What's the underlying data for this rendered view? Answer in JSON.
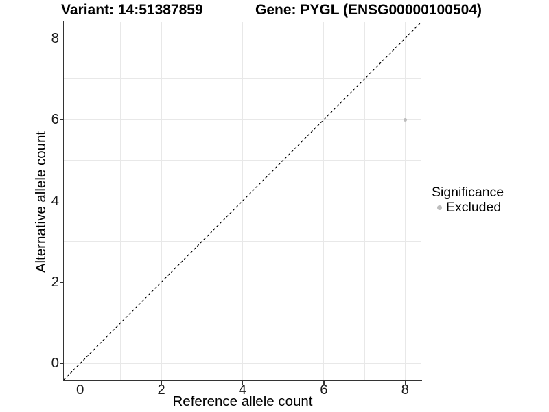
{
  "chart_data": {
    "type": "scatter",
    "titles": {
      "variant": "Variant: 14:51387859",
      "gene": "Gene: PYGL (ENSG00000100504)"
    },
    "xlabel": "Reference allele count",
    "ylabel": "Alternative allele count",
    "xlim": [
      -0.4,
      8.4
    ],
    "ylim": [
      -0.4,
      8.4
    ],
    "x_ticks": [
      0,
      2,
      4,
      6,
      8
    ],
    "y_ticks": [
      0,
      2,
      4,
      6,
      8
    ],
    "gridlines_x": [
      0,
      1,
      2,
      3,
      4,
      5,
      6,
      7,
      8
    ],
    "gridlines_y": [
      0,
      1,
      2,
      3,
      4,
      5,
      6,
      7,
      8
    ],
    "grid": true,
    "identity_line": {
      "equation": "y = x",
      "style": "dashed",
      "color": "#000000"
    },
    "series": [
      {
        "name": "Excluded",
        "color": "#bdbdbd",
        "points": [
          {
            "x": 8,
            "y": 6
          }
        ]
      }
    ],
    "legend": {
      "title": "Significance",
      "position": "right",
      "entries": [
        {
          "label": "Excluded",
          "color": "#bdbdbd"
        }
      ]
    }
  }
}
